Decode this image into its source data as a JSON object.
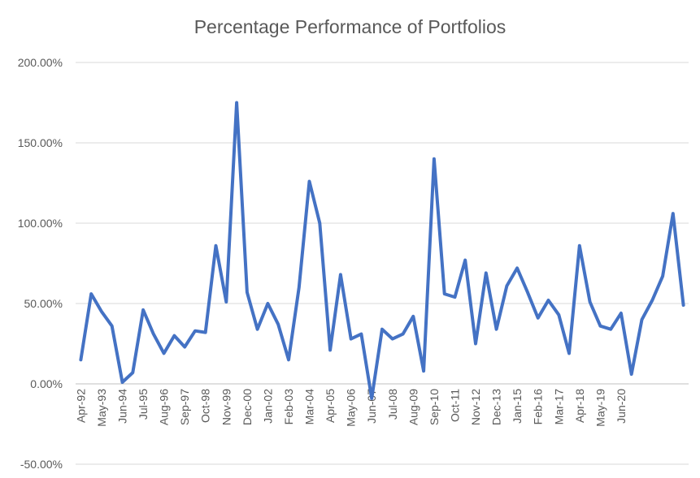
{
  "chart_data": {
    "type": "line",
    "title": "Percentage Performance of Portfolios",
    "xlabel": "",
    "ylabel": "",
    "ylim": [
      -0.5,
      2.0
    ],
    "ytick_values": [
      -0.5,
      0,
      0.5,
      1.0,
      1.5,
      2.0
    ],
    "ytick_labels": [
      "-50.00%",
      "0.00%",
      "50.00%",
      "100.00%",
      "150.00%",
      "200.00%"
    ],
    "x_tick_labels": [
      "Apr-92",
      "May-93",
      "Jun-94",
      "Jul-95",
      "Aug-96",
      "Sep-97",
      "Oct-98",
      "Nov-99",
      "Dec-00",
      "Jan-02",
      "Feb-03",
      "Mar-04",
      "Apr-05",
      "May-06",
      "Jun-07",
      "Jul-08",
      "Aug-09",
      "Sep-10",
      "Oct-11",
      "Nov-12",
      "Dec-13",
      "Jan-15",
      "Feb-16",
      "Mar-17",
      "Apr-18",
      "May-19",
      "Jun-20"
    ],
    "grid": true,
    "legend": "none",
    "line_color": "#4472C4",
    "series": [
      {
        "values": [
          0.15,
          0.56,
          0.45,
          0.36,
          0.01,
          0.07,
          0.46,
          0.31,
          0.19,
          0.3,
          0.23,
          0.33,
          0.32,
          0.86,
          0.51,
          1.75,
          0.57,
          0.34,
          0.5,
          0.37,
          0.15,
          0.6,
          1.26,
          1.0,
          0.21,
          0.68,
          0.28,
          0.31,
          -0.09,
          0.34,
          0.28,
          0.31,
          0.42,
          0.08,
          1.4,
          0.56,
          0.54,
          0.77,
          0.25,
          0.69,
          0.34,
          0.61,
          0.72,
          0.57,
          0.41,
          0.52,
          0.43,
          0.19,
          0.86,
          0.51,
          0.36,
          0.34,
          0.44,
          0.06,
          0.4,
          0.52,
          0.67,
          1.06,
          0.49
        ]
      }
    ]
  }
}
